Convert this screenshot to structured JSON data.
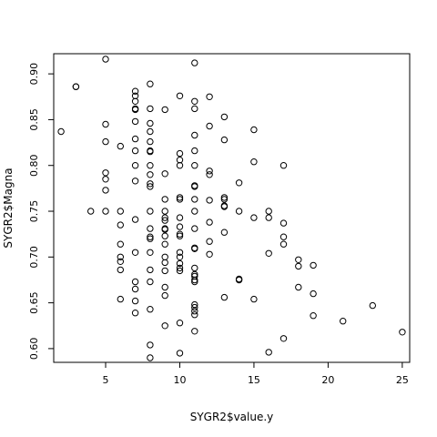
{
  "chart_data": {
    "type": "scatter",
    "title": "",
    "xlabel": "SYGR2$value.y",
    "ylabel": "SYGR2$Magna",
    "xlim": [
      1.5,
      25.5
    ],
    "ylim": [
      0.585,
      0.922
    ],
    "xticks": [
      "5",
      "10",
      "15",
      "20",
      "25"
    ],
    "yticks": [
      "0.60",
      "0.65",
      "0.70",
      "0.75",
      "0.80",
      "0.85",
      "0.90"
    ],
    "xtick_values": [
      5,
      10,
      15,
      20,
      25
    ],
    "ytick_values": [
      0.6,
      0.65,
      0.7,
      0.75,
      0.8,
      0.85,
      0.9
    ],
    "marker": "open-circle",
    "point_color": "#000000",
    "points": [
      [
        2,
        0.837
      ],
      [
        3,
        0.886
      ],
      [
        3,
        0.886
      ],
      [
        4,
        0.75
      ],
      [
        5,
        0.916
      ],
      [
        5,
        0.845
      ],
      [
        5,
        0.826
      ],
      [
        5,
        0.792
      ],
      [
        5,
        0.785
      ],
      [
        5,
        0.773
      ],
      [
        5,
        0.75
      ],
      [
        6,
        0.821
      ],
      [
        6,
        0.75
      ],
      [
        6,
        0.735
      ],
      [
        6,
        0.714
      ],
      [
        6,
        0.7
      ],
      [
        6,
        0.695
      ],
      [
        6,
        0.686
      ],
      [
        6,
        0.654
      ],
      [
        7,
        0.881
      ],
      [
        7,
        0.876
      ],
      [
        7,
        0.87
      ],
      [
        7,
        0.862
      ],
      [
        7,
        0.861
      ],
      [
        7,
        0.848
      ],
      [
        7,
        0.829
      ],
      [
        7,
        0.816
      ],
      [
        7,
        0.8
      ],
      [
        7,
        0.783
      ],
      [
        7,
        0.741
      ],
      [
        7,
        0.705
      ],
      [
        7,
        0.673
      ],
      [
        7,
        0.665
      ],
      [
        7,
        0.652
      ],
      [
        7,
        0.639
      ],
      [
        8,
        0.889
      ],
      [
        8,
        0.862
      ],
      [
        8,
        0.846
      ],
      [
        8,
        0.837
      ],
      [
        8,
        0.826
      ],
      [
        8,
        0.816
      ],
      [
        8,
        0.815
      ],
      [
        8,
        0.8
      ],
      [
        8,
        0.79
      ],
      [
        8,
        0.78
      ],
      [
        8,
        0.777
      ],
      [
        8,
        0.75
      ],
      [
        8,
        0.731
      ],
      [
        8,
        0.722
      ],
      [
        8,
        0.72
      ],
      [
        8,
        0.705
      ],
      [
        8,
        0.686
      ],
      [
        8,
        0.673
      ],
      [
        8,
        0.643
      ],
      [
        8,
        0.604
      ],
      [
        8,
        0.59
      ],
      [
        9,
        0.861
      ],
      [
        9,
        0.791
      ],
      [
        9,
        0.763
      ],
      [
        9,
        0.75
      ],
      [
        9,
        0.743
      ],
      [
        9,
        0.74
      ],
      [
        9,
        0.731
      ],
      [
        9,
        0.73
      ],
      [
        9,
        0.723
      ],
      [
        9,
        0.714
      ],
      [
        9,
        0.7
      ],
      [
        9,
        0.694
      ],
      [
        9,
        0.685
      ],
      [
        9,
        0.667
      ],
      [
        9,
        0.658
      ],
      [
        9,
        0.625
      ],
      [
        10,
        0.876
      ],
      [
        10,
        0.813
      ],
      [
        10,
        0.806
      ],
      [
        10,
        0.8
      ],
      [
        10,
        0.765
      ],
      [
        10,
        0.763
      ],
      [
        10,
        0.743
      ],
      [
        10,
        0.733
      ],
      [
        10,
        0.725
      ],
      [
        10,
        0.723
      ],
      [
        10,
        0.705
      ],
      [
        10,
        0.7
      ],
      [
        10,
        0.693
      ],
      [
        10,
        0.688
      ],
      [
        10,
        0.685
      ],
      [
        10,
        0.628
      ],
      [
        10,
        0.595
      ],
      [
        11,
        0.912
      ],
      [
        11,
        0.87
      ],
      [
        11,
        0.862
      ],
      [
        11,
        0.833
      ],
      [
        11,
        0.816
      ],
      [
        11,
        0.8
      ],
      [
        11,
        0.778
      ],
      [
        11,
        0.777
      ],
      [
        11,
        0.763
      ],
      [
        11,
        0.75
      ],
      [
        11,
        0.731
      ],
      [
        11,
        0.71
      ],
      [
        11,
        0.709
      ],
      [
        11,
        0.688
      ],
      [
        11,
        0.681
      ],
      [
        11,
        0.679
      ],
      [
        11,
        0.675
      ],
      [
        11,
        0.673
      ],
      [
        11,
        0.648
      ],
      [
        11,
        0.645
      ],
      [
        11,
        0.641
      ],
      [
        11,
        0.637
      ],
      [
        11,
        0.619
      ],
      [
        12,
        0.875
      ],
      [
        12,
        0.843
      ],
      [
        12,
        0.794
      ],
      [
        12,
        0.79
      ],
      [
        12,
        0.762
      ],
      [
        12,
        0.738
      ],
      [
        12,
        0.717
      ],
      [
        12,
        0.703
      ],
      [
        13,
        0.853
      ],
      [
        13,
        0.828
      ],
      [
        13,
        0.765
      ],
      [
        13,
        0.763
      ],
      [
        13,
        0.756
      ],
      [
        13,
        0.755
      ],
      [
        13,
        0.727
      ],
      [
        13,
        0.656
      ],
      [
        14,
        0.781
      ],
      [
        14,
        0.75
      ],
      [
        14,
        0.676
      ],
      [
        14,
        0.675
      ],
      [
        15,
        0.839
      ],
      [
        15,
        0.804
      ],
      [
        15,
        0.743
      ],
      [
        15,
        0.654
      ],
      [
        16,
        0.75
      ],
      [
        16,
        0.743
      ],
      [
        16,
        0.704
      ],
      [
        16,
        0.596
      ],
      [
        17,
        0.8
      ],
      [
        17,
        0.737
      ],
      [
        17,
        0.722
      ],
      [
        17,
        0.714
      ],
      [
        17,
        0.611
      ],
      [
        18,
        0.697
      ],
      [
        18,
        0.69
      ],
      [
        18,
        0.667
      ],
      [
        19,
        0.691
      ],
      [
        19,
        0.66
      ],
      [
        19,
        0.636
      ],
      [
        21,
        0.63
      ],
      [
        23,
        0.647
      ],
      [
        25,
        0.618
      ]
    ]
  }
}
